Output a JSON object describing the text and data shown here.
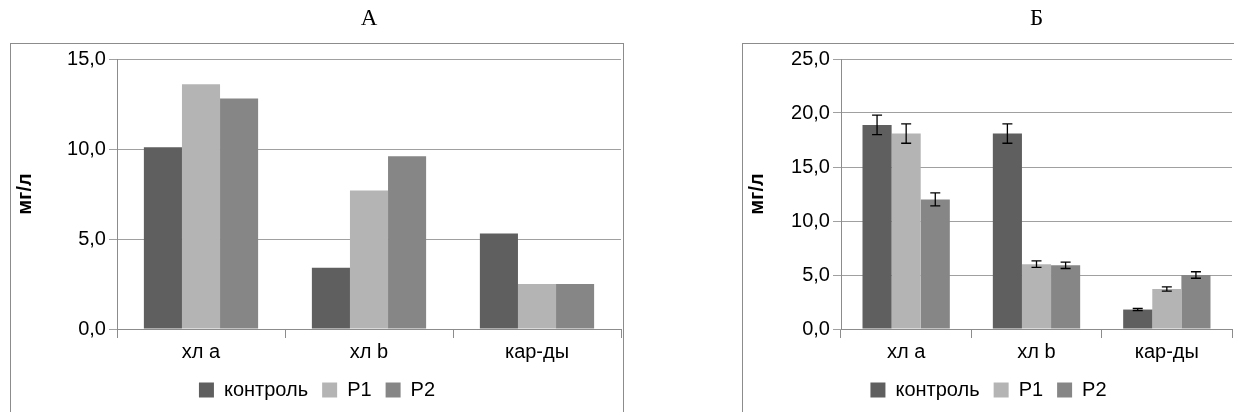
{
  "chart_data": [
    {
      "type": "bar",
      "title": "А",
      "ylabel": "мг/л",
      "categories": [
        "хл a",
        "хл b",
        "кар-ды"
      ],
      "series": [
        {
          "name": "контроль",
          "color": "#5f5f5f",
          "values": [
            10.1,
            3.4,
            5.3
          ]
        },
        {
          "name": "P1",
          "color": "#b4b4b4",
          "values": [
            13.6,
            7.7,
            2.5
          ]
        },
        {
          "name": "P2",
          "color": "#868686",
          "values": [
            12.8,
            9.6,
            2.5
          ]
        }
      ],
      "ylim": [
        0,
        15
      ],
      "yticks": [
        {
          "value": 0,
          "label": "0,0"
        },
        {
          "value": 5,
          "label": "5,0"
        },
        {
          "value": 10,
          "label": "10,0"
        },
        {
          "value": 15,
          "label": "15,0"
        }
      ],
      "grid": "y",
      "legend": "bottom"
    },
    {
      "type": "bar",
      "title": "Б",
      "ylabel": "мг/л",
      "categories": [
        "хл a",
        "хл b",
        "кар-ды"
      ],
      "series": [
        {
          "name": "контроль",
          "color": "#5f5f5f",
          "values": [
            18.9,
            18.1,
            1.8
          ],
          "errors": [
            0.9,
            0.9,
            0.1
          ]
        },
        {
          "name": "P1",
          "color": "#b4b4b4",
          "values": [
            18.1,
            6.0,
            3.7
          ],
          "errors": [
            0.9,
            0.3,
            0.2
          ]
        },
        {
          "name": "P2",
          "color": "#868686",
          "values": [
            12.0,
            5.9,
            5.0
          ],
          "errors": [
            0.6,
            0.3,
            0.3
          ]
        }
      ],
      "ylim": [
        0,
        25
      ],
      "yticks": [
        {
          "value": 0,
          "label": "0,0"
        },
        {
          "value": 5,
          "label": "5,0"
        },
        {
          "value": 10,
          "label": "10,0"
        },
        {
          "value": 15,
          "label": "15,0"
        },
        {
          "value": 20,
          "label": "20,0"
        },
        {
          "value": 25,
          "label": "25,0"
        }
      ],
      "grid": "y",
      "legend": "bottom"
    }
  ]
}
